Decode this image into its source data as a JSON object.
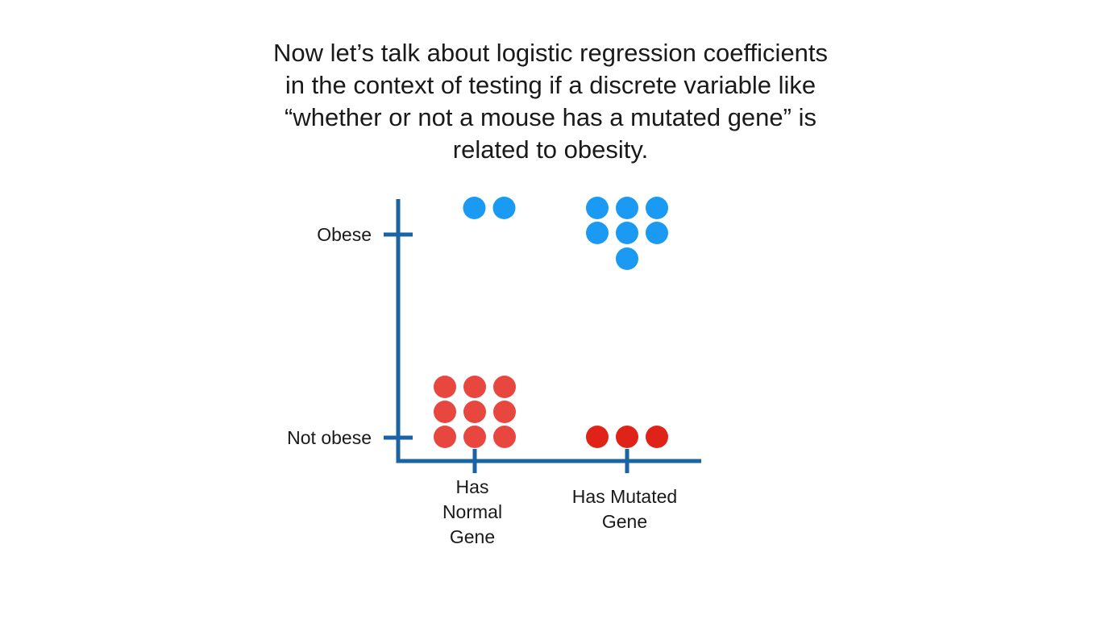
{
  "heading": {
    "lines": [
      "Now let’s talk about logistic regression coefficients",
      "in the context of testing if a discrete variable like",
      "“whether or not a mouse has a mutated gene” is",
      "related to obesity."
    ]
  },
  "chart_data": {
    "type": "scatter",
    "x": {
      "categories": [
        {
          "lines": [
            "Has",
            "Normal",
            "Gene"
          ]
        },
        {
          "lines": [
            "Has Mutated",
            "Gene"
          ]
        }
      ]
    },
    "y": {
      "categories": [
        "Not obese",
        "Obese"
      ]
    },
    "groups": [
      {
        "x": "Has Normal Gene",
        "y": "Obese",
        "count": 2,
        "color": "#1a9af3"
      },
      {
        "x": "Has Mutated Gene",
        "y": "Obese",
        "count": 7,
        "color": "#1a9af3"
      },
      {
        "x": "Has Normal Gene",
        "y": "Not obese",
        "count": 9,
        "color": "#e8473f"
      },
      {
        "x": "Has Mutated Gene",
        "y": "Not obese",
        "count": 3,
        "color": "#e02318"
      }
    ],
    "axis_color": "#1b64a3"
  }
}
